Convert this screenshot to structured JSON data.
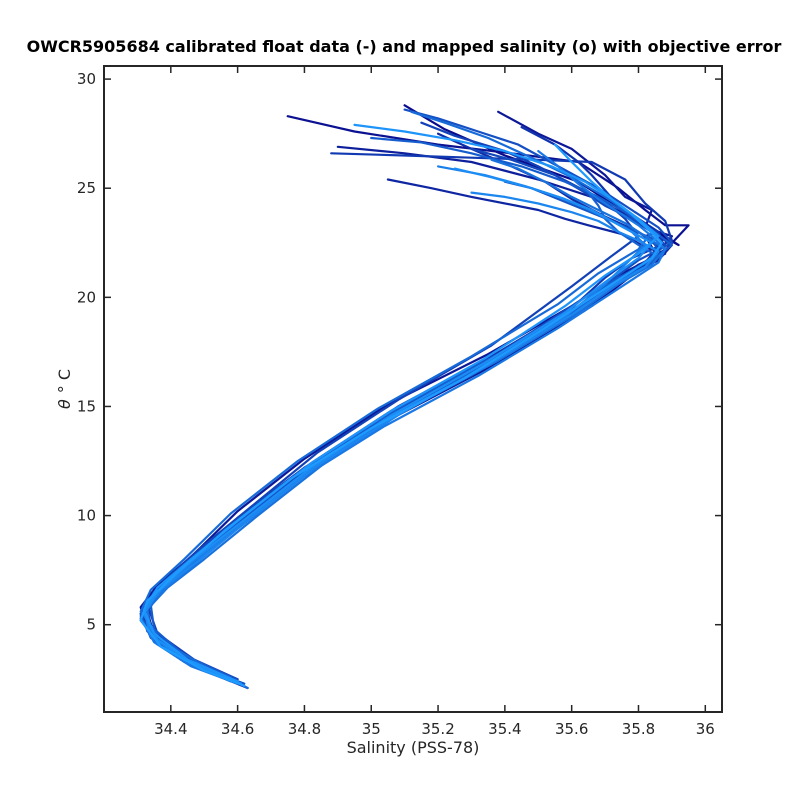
{
  "chart_data": {
    "type": "line",
    "title": "OWCR5905684 calibrated float data (-) and mapped salinity (o) with objective error",
    "xlabel": "Salinity (PSS-78)",
    "ylabel_symbol": "θ",
    "ylabel_unit": "° C",
    "xlim": [
      34.2,
      36.05
    ],
    "ylim": [
      1.0,
      30.6
    ],
    "xticks": [
      34.4,
      34.6,
      34.8,
      35.0,
      35.2,
      35.4,
      35.6,
      35.8,
      36.0
    ],
    "xtick_labels": [
      "34.4",
      "34.6",
      "34.8",
      "35",
      "35.2",
      "35.4",
      "35.6",
      "35.8",
      "36"
    ],
    "yticks": [
      5,
      10,
      15,
      20,
      25,
      30
    ],
    "ytick_labels": [
      "5",
      "10",
      "15",
      "20",
      "25",
      "30"
    ],
    "grid": false,
    "color_range": [
      "#0a0a8c",
      "#1e9bff"
    ],
    "series": [
      {
        "x": [
          35.1,
          35.22,
          35.4,
          35.62,
          35.72,
          35.8,
          35.92,
          35.86,
          35.82,
          35.86,
          35.78,
          35.66,
          35.4,
          35.1,
          34.85,
          34.65,
          34.48,
          34.38,
          34.33,
          34.35,
          34.43,
          34.55,
          34.63
        ],
        "y": [
          28.8,
          27.7,
          26.5,
          25.3,
          24.3,
          23.4,
          22.4,
          23.0,
          22.8,
          21.8,
          21.0,
          19.6,
          17.2,
          14.9,
          12.5,
          10.0,
          8.0,
          6.8,
          5.6,
          4.5,
          3.4,
          2.6,
          2.1
        ]
      },
      {
        "x": [
          34.75,
          34.95,
          35.2,
          35.42,
          35.62,
          35.74,
          35.82,
          35.88,
          35.95,
          35.87,
          35.78,
          35.64,
          35.38,
          35.08,
          34.82,
          34.62,
          34.47,
          34.37,
          34.32,
          34.34,
          34.42,
          34.54
        ],
        "y": [
          28.3,
          27.6,
          27.0,
          26.6,
          26.2,
          25.0,
          24.0,
          23.3,
          23.3,
          22.0,
          21.1,
          19.4,
          17.0,
          14.6,
          12.2,
          9.8,
          7.9,
          6.6,
          5.7,
          4.6,
          3.6,
          2.8
        ]
      },
      {
        "x": [
          35.38,
          35.5,
          35.6,
          35.7,
          35.76,
          35.84,
          35.82,
          35.9,
          35.84,
          35.74,
          35.6,
          35.35,
          35.05,
          34.8,
          34.6,
          34.46,
          34.36,
          34.31,
          34.33,
          34.41,
          34.52,
          34.6
        ],
        "y": [
          28.5,
          27.5,
          26.8,
          25.6,
          24.6,
          24.0,
          23.2,
          22.8,
          21.8,
          21.0,
          19.6,
          17.4,
          15.1,
          12.6,
          10.2,
          8.1,
          6.8,
          5.8,
          4.7,
          3.6,
          2.8,
          2.3
        ]
      },
      {
        "x": [
          34.9,
          35.1,
          35.3,
          35.5,
          35.66,
          35.76,
          35.84,
          35.9,
          35.86,
          35.75,
          35.62,
          35.36,
          35.06,
          34.82,
          34.62,
          34.46,
          34.36,
          34.31,
          34.35,
          34.45,
          34.58
        ],
        "y": [
          26.9,
          26.6,
          26.2,
          25.4,
          24.6,
          23.8,
          23.0,
          22.4,
          21.7,
          20.9,
          19.5,
          17.1,
          14.8,
          12.4,
          10.0,
          8.0,
          6.6,
          5.5,
          4.3,
          3.3,
          2.5
        ]
      },
      {
        "x": [
          35.05,
          35.18,
          35.3,
          35.5,
          35.58,
          35.65,
          35.75,
          35.82,
          35.88,
          35.8,
          35.72,
          35.6,
          35.34,
          35.04,
          34.8,
          34.6,
          34.45,
          34.35,
          34.32,
          34.36,
          34.46,
          34.6
        ],
        "y": [
          25.4,
          25.0,
          24.6,
          24.0,
          23.6,
          23.3,
          22.9,
          22.3,
          22.0,
          21.5,
          20.6,
          19.2,
          16.9,
          14.6,
          12.1,
          9.7,
          7.8,
          6.4,
          5.4,
          4.2,
          3.2,
          2.4
        ]
      },
      {
        "x": [
          35.2,
          35.3,
          35.42,
          35.52,
          35.6,
          35.7,
          35.8,
          35.86,
          35.82,
          35.7,
          35.58,
          35.32,
          35.02,
          34.78,
          34.58,
          34.44,
          34.34,
          34.31,
          34.36,
          34.48
        ],
        "y": [
          27.5,
          26.8,
          26.0,
          25.3,
          24.5,
          23.7,
          23.0,
          22.3,
          21.6,
          20.5,
          19.0,
          16.6,
          14.3,
          11.9,
          9.5,
          7.6,
          6.2,
          5.3,
          4.1,
          3.1
        ]
      },
      {
        "x": [
          35.45,
          35.55,
          35.62,
          35.66,
          35.7,
          35.74,
          35.8,
          35.86,
          35.88,
          35.8,
          35.68,
          35.55,
          35.3,
          35.0,
          34.76,
          34.56,
          34.42,
          34.33,
          34.31,
          34.37,
          34.5,
          34.62
        ],
        "y": [
          27.8,
          27.0,
          26.2,
          25.6,
          24.9,
          24.2,
          23.6,
          23.0,
          22.2,
          21.4,
          20.3,
          18.8,
          16.4,
          14.0,
          11.7,
          9.3,
          7.4,
          6.1,
          5.2,
          4.0,
          2.9,
          2.2
        ]
      },
      {
        "x": [
          34.88,
          35.1,
          35.3,
          35.5,
          35.66,
          35.76,
          35.82,
          35.88,
          35.9,
          35.78,
          35.7,
          35.6,
          35.36,
          35.08,
          34.84,
          34.64,
          34.48,
          34.38,
          34.33,
          34.34,
          34.44,
          34.56
        ],
        "y": [
          26.6,
          26.5,
          26.4,
          26.3,
          26.2,
          25.4,
          24.3,
          23.5,
          22.6,
          21.8,
          20.9,
          19.5,
          17.3,
          15.0,
          12.6,
          10.2,
          8.2,
          6.9,
          5.8,
          4.8,
          3.5,
          2.7
        ]
      },
      {
        "x": [
          35.15,
          35.25,
          35.4,
          35.5,
          35.6,
          35.7,
          35.76,
          35.8,
          35.72,
          35.6,
          35.36,
          35.08,
          34.84,
          34.64,
          34.48,
          34.38,
          34.33,
          34.36,
          34.47,
          34.6
        ],
        "y": [
          28.0,
          27.4,
          26.7,
          26.0,
          25.2,
          24.4,
          23.6,
          22.8,
          21.9,
          20.5,
          17.8,
          15.3,
          12.9,
          10.4,
          8.4,
          7.0,
          5.9,
          4.6,
          3.4,
          2.5
        ]
      },
      {
        "x": [
          35.3,
          35.42,
          35.55,
          35.64,
          35.7,
          35.78,
          35.84,
          35.88,
          35.82,
          35.72,
          35.6,
          35.36,
          35.06,
          34.8,
          34.6,
          34.45,
          34.35,
          34.31,
          34.34,
          34.44,
          34.58
        ],
        "y": [
          26.8,
          26.3,
          25.6,
          24.8,
          24.2,
          23.6,
          23.0,
          22.4,
          21.6,
          20.7,
          19.3,
          17.0,
          14.6,
          12.2,
          9.9,
          7.9,
          6.5,
          5.5,
          4.4,
          3.3,
          2.4
        ]
      },
      {
        "x": [
          35.1,
          35.2,
          35.32,
          35.44,
          35.56,
          35.68,
          35.78,
          35.86,
          35.9,
          35.8,
          35.72,
          35.58,
          35.34,
          35.06,
          34.82,
          34.62,
          34.46,
          34.36,
          34.32,
          34.35,
          34.45,
          34.6
        ],
        "y": [
          28.6,
          28.2,
          27.6,
          27.0,
          26.0,
          25.0,
          24.0,
          23.2,
          22.5,
          21.7,
          20.8,
          19.4,
          17.0,
          14.7,
          12.3,
          9.9,
          7.9,
          6.6,
          5.6,
          4.5,
          3.4,
          2.5
        ]
      },
      {
        "x": [
          35.4,
          35.48,
          35.56,
          35.64,
          35.72,
          35.78,
          35.84,
          35.86,
          35.8,
          35.7,
          35.58,
          35.32,
          35.04,
          34.8,
          34.6,
          34.45,
          34.35,
          34.31,
          34.36,
          34.48,
          34.62
        ],
        "y": [
          25.3,
          25.0,
          24.5,
          24.0,
          23.5,
          23.1,
          22.7,
          22.1,
          21.4,
          20.4,
          19.0,
          16.7,
          14.4,
          12.0,
          9.6,
          7.7,
          6.3,
          5.4,
          4.2,
          3.1,
          2.3
        ]
      },
      {
        "x": [
          35.0,
          35.15,
          35.3,
          35.45,
          35.58,
          35.68,
          35.76,
          35.84,
          35.9,
          35.84,
          35.74,
          35.62,
          35.38,
          35.1,
          34.86,
          34.66,
          34.5,
          34.39,
          34.34,
          34.35,
          34.44,
          34.58
        ],
        "y": [
          27.3,
          27.1,
          26.6,
          26.0,
          25.3,
          24.6,
          23.9,
          23.1,
          22.4,
          21.7,
          20.9,
          19.6,
          17.4,
          15.1,
          12.7,
          10.3,
          8.3,
          6.9,
          5.9,
          4.8,
          3.6,
          2.6
        ]
      },
      {
        "x": [
          35.65,
          35.68,
          35.7,
          35.74,
          35.78,
          35.82,
          35.86,
          35.82,
          35.7,
          35.6,
          35.34,
          35.06,
          34.82,
          34.62,
          34.46,
          34.36,
          34.32,
          34.36,
          34.46,
          34.58
        ],
        "y": [
          24.8,
          24.2,
          23.6,
          23.0,
          22.6,
          22.2,
          21.9,
          21.4,
          20.5,
          19.2,
          16.9,
          14.5,
          12.1,
          9.7,
          7.8,
          6.5,
          5.5,
          4.3,
          3.2,
          2.4
        ]
      },
      {
        "x": [
          35.12,
          35.22,
          35.35,
          35.48,
          35.6,
          35.7,
          35.78,
          35.84,
          35.8,
          35.68,
          35.56,
          35.3,
          35.02,
          34.78,
          34.58,
          34.44,
          34.34,
          34.31,
          34.37,
          34.5,
          34.63
        ],
        "y": [
          28.5,
          28.0,
          27.3,
          26.4,
          25.5,
          24.6,
          23.8,
          23.0,
          22.2,
          21.1,
          19.7,
          17.3,
          14.9,
          12.5,
          10.1,
          8.0,
          6.6,
          5.6,
          4.3,
          3.1,
          2.1
        ]
      },
      {
        "x": [
          35.36,
          35.44,
          35.52,
          35.6,
          35.68,
          35.76,
          35.82,
          35.88,
          35.84,
          35.74,
          35.62,
          35.38,
          35.1,
          34.86,
          34.66,
          34.5,
          34.39,
          34.33,
          34.34,
          34.42,
          34.55
        ],
        "y": [
          26.3,
          25.9,
          25.3,
          24.6,
          24.0,
          23.4,
          22.8,
          22.2,
          21.5,
          20.6,
          19.3,
          17.1,
          14.8,
          12.4,
          10.0,
          8.0,
          6.7,
          5.7,
          4.6,
          3.5,
          2.6
        ]
      },
      {
        "x": [
          35.5,
          35.56,
          35.62,
          35.68,
          35.74,
          35.8,
          35.84,
          35.88,
          35.86,
          35.78,
          35.68,
          35.56,
          35.32,
          35.04,
          34.8,
          34.6,
          34.45,
          34.35,
          34.31,
          34.35,
          34.46,
          34.6
        ],
        "y": [
          26.7,
          26.0,
          25.2,
          24.5,
          23.9,
          23.3,
          22.8,
          22.2,
          21.6,
          20.8,
          19.8,
          18.6,
          16.4,
          14.1,
          11.8,
          9.4,
          7.5,
          6.2,
          5.3,
          4.2,
          3.1,
          2.3
        ]
      },
      {
        "x": [
          35.2,
          35.34,
          35.46,
          35.56,
          35.64,
          35.72,
          35.78,
          35.82,
          35.78,
          35.7,
          35.58,
          35.34,
          35.06,
          34.82,
          34.62,
          34.46,
          34.36,
          34.32,
          34.35,
          34.46,
          34.6
        ],
        "y": [
          26.0,
          25.6,
          25.1,
          24.6,
          24.1,
          23.5,
          23.0,
          22.4,
          21.8,
          20.6,
          19.1,
          16.8,
          14.5,
          12.1,
          9.7,
          7.8,
          6.5,
          5.6,
          4.4,
          3.3,
          2.4
        ]
      },
      {
        "x": [
          35.3,
          35.4,
          35.5,
          35.6,
          35.68,
          35.74,
          35.8,
          35.86,
          35.82,
          35.72,
          35.6,
          35.36,
          35.08,
          34.84,
          34.64,
          34.48,
          34.37,
          34.32,
          34.34,
          34.44,
          34.58
        ],
        "y": [
          24.8,
          24.6,
          24.3,
          23.9,
          23.5,
          23.0,
          22.6,
          22.1,
          21.4,
          20.5,
          19.2,
          17.0,
          14.6,
          12.3,
          9.9,
          7.9,
          6.6,
          5.6,
          4.5,
          3.4,
          2.5
        ]
      },
      {
        "x": [
          35.25,
          35.36,
          35.48,
          35.58,
          35.66,
          35.72,
          35.78,
          35.84,
          35.8,
          35.7,
          35.58,
          35.34,
          35.06,
          34.82,
          34.62,
          34.46,
          34.36,
          34.32,
          34.36,
          34.47,
          34.61
        ],
        "y": [
          25.9,
          25.5,
          25.0,
          24.5,
          24.0,
          23.5,
          23.0,
          22.5,
          21.8,
          20.7,
          19.3,
          17.0,
          14.6,
          12.2,
          9.8,
          7.9,
          6.5,
          5.5,
          4.3,
          3.2,
          2.3
        ]
      },
      {
        "x": [
          34.95,
          35.1,
          35.25,
          35.4,
          35.54,
          35.64,
          35.72,
          35.8,
          35.86,
          35.8,
          35.7,
          35.58,
          35.34,
          35.06,
          34.82,
          34.62,
          34.46,
          34.36,
          34.32,
          34.35,
          34.45,
          34.6
        ],
        "y": [
          27.9,
          27.6,
          27.2,
          26.7,
          26.0,
          25.3,
          24.5,
          23.6,
          22.8,
          22.0,
          21.0,
          19.6,
          17.2,
          14.8,
          12.4,
          10.0,
          8.0,
          6.7,
          5.7,
          4.6,
          3.4,
          2.4
        ]
      },
      {
        "x": [
          35.55,
          35.6,
          35.66,
          35.72,
          35.78,
          35.83,
          35.87,
          35.84,
          35.76,
          35.66,
          35.52,
          35.28,
          35.0,
          34.76,
          34.56,
          34.42,
          34.33,
          34.31,
          34.37,
          34.5,
          34.62
        ],
        "y": [
          27.0,
          26.2,
          25.3,
          24.5,
          23.8,
          23.1,
          22.5,
          21.8,
          21.0,
          20.0,
          18.6,
          16.3,
          14.0,
          11.7,
          9.3,
          7.4,
          6.1,
          5.2,
          4.0,
          2.9,
          2.2
        ]
      }
    ]
  }
}
